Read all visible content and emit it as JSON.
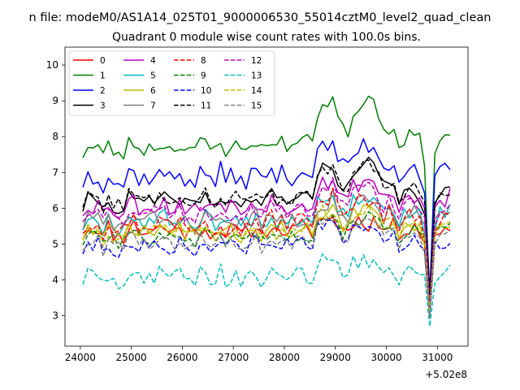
{
  "figure": {
    "suptitle": "n file: modeM0/AS1A14_025T01_9000006530_55014cztM0_level2_quad_clean",
    "offset_label": "+5.02e8"
  },
  "chart_data": {
    "type": "line",
    "title": "Quadrant 0 module wise count rates with 100.0s bins.",
    "xlabel": "",
    "ylabel": "",
    "x_offset": 502000000,
    "xlim": [
      23700,
      31600
    ],
    "ylim": [
      2.15,
      10.5
    ],
    "x_start": 24050,
    "x_step": 100,
    "n_points": 73,
    "xticks": [
      24000,
      25000,
      26000,
      27000,
      28000,
      29000,
      30000,
      31000
    ],
    "xtick_labels": [
      "24000",
      "25000",
      "26000",
      "27000",
      "28000",
      "29000",
      "30000",
      "31000"
    ],
    "yticks": [
      3,
      4,
      5,
      6,
      7,
      8,
      9,
      10
    ],
    "ytick_labels": [
      "3",
      "4",
      "5",
      "6",
      "7",
      "8",
      "9",
      "10"
    ],
    "grid": false,
    "legend": {
      "position": "top-left",
      "ncol": 4
    },
    "series": [
      {
        "name": "0",
        "color": "#ff0000",
        "dash": "solid",
        "base": 5.35,
        "trend": 0.1,
        "noise": 0.25,
        "dip": 2.3,
        "seed": 11
      },
      {
        "name": "1",
        "color": "#008000",
        "dash": "solid",
        "base": 7.6,
        "trend": 0.45,
        "noise": 0.2,
        "dip": 4.4,
        "seed": 23
      },
      {
        "name": "2",
        "color": "#0000ff",
        "dash": "solid",
        "base": 6.8,
        "trend": 0.3,
        "noise": 0.25,
        "dip": 3.6,
        "seed": 37
      },
      {
        "name": "3",
        "color": "#000000",
        "dash": "solid",
        "base": 6.1,
        "trend": 0.35,
        "noise": 0.2,
        "dip": 3.0,
        "seed": 41
      },
      {
        "name": "4",
        "color": "#bf00bf",
        "dash": "solid",
        "base": 6.0,
        "trend": 0.25,
        "noise": 0.25,
        "dip": 2.9,
        "seed": 53
      },
      {
        "name": "5",
        "color": "#00bfbf",
        "dash": "solid",
        "base": 5.6,
        "trend": 0.25,
        "noise": 0.25,
        "dip": 2.6,
        "seed": 67
      },
      {
        "name": "6",
        "color": "#bfbf00",
        "dash": "solid",
        "base": 5.3,
        "trend": 0.2,
        "noise": 0.22,
        "dip": 2.4,
        "seed": 71
      },
      {
        "name": "7",
        "color": "#808080",
        "dash": "solid",
        "base": 5.6,
        "trend": 0.2,
        "noise": 0.25,
        "dip": 2.6,
        "seed": 83
      },
      {
        "name": "8",
        "color": "#ff0000",
        "dash": "dashed",
        "base": 5.5,
        "trend": 0.25,
        "noise": 0.25,
        "dip": 2.6,
        "seed": 97
      },
      {
        "name": "9",
        "color": "#008000",
        "dash": "dashed",
        "base": 5.15,
        "trend": 0.2,
        "noise": 0.2,
        "dip": 2.3,
        "seed": 101
      },
      {
        "name": "10",
        "color": "#0000ff",
        "dash": "dashed",
        "base": 4.9,
        "trend": 0.2,
        "noise": 0.2,
        "dip": 2.1,
        "seed": 113
      },
      {
        "name": "11",
        "color": "#000000",
        "dash": "dashed",
        "base": 6.2,
        "trend": 0.3,
        "noise": 0.2,
        "dip": 3.0,
        "seed": 127
      },
      {
        "name": "12",
        "color": "#bf00bf",
        "dash": "dashed",
        "base": 5.8,
        "trend": 0.25,
        "noise": 0.22,
        "dip": 2.8,
        "seed": 131
      },
      {
        "name": "13",
        "color": "#00bfbf",
        "dash": "dashed",
        "base": 4.05,
        "trend": 0.15,
        "noise": 0.22,
        "dip": 1.5,
        "seed": 149
      },
      {
        "name": "14",
        "color": "#bfbf00",
        "dash": "dashed",
        "base": 5.3,
        "trend": 0.2,
        "noise": 0.22,
        "dip": 2.5,
        "seed": 157
      },
      {
        "name": "15",
        "color": "#808080",
        "dash": "dashed",
        "base": 5.0,
        "trend": 0.2,
        "noise": 0.2,
        "dip": 2.2,
        "seed": 163
      }
    ]
  }
}
